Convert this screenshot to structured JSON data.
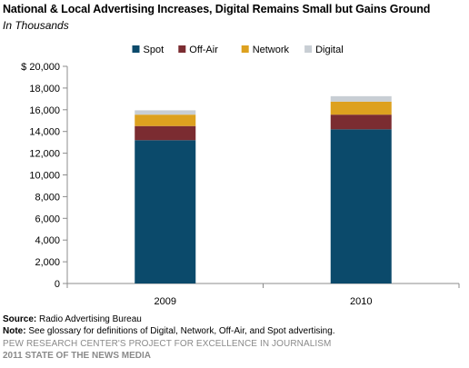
{
  "chart_data": {
    "type": "bar",
    "stacked": true,
    "title": "National & Local Advertising Increases, Digital Remains Small but Gains Ground",
    "subtitle": "In Thousands",
    "categories": [
      "2009",
      "2010"
    ],
    "series": [
      {
        "name": "Spot",
        "color": "#0b4a6b",
        "values": [
          13200,
          14200
        ]
      },
      {
        "name": "Off-Air",
        "color": "#7b2c31",
        "values": [
          1300,
          1350
        ]
      },
      {
        "name": "Network",
        "color": "#dda11f",
        "values": [
          1050,
          1200
        ]
      },
      {
        "name": "Digital",
        "color": "#c8ced4",
        "values": [
          400,
          500
        ]
      }
    ],
    "ylim": [
      0,
      20000
    ],
    "yticks": [
      "$ 20,000",
      "18,000",
      "16,000",
      "14,000",
      "12,000",
      "10,000",
      "8,000",
      "6,000",
      "4,000",
      "2,000",
      "0"
    ],
    "ytick_values": [
      20000,
      18000,
      16000,
      14000,
      12000,
      10000,
      8000,
      6000,
      4000,
      2000,
      0
    ],
    "legend_position": "top",
    "grid": false
  },
  "footer": {
    "source_label": "Source:",
    "source_text": "Radio Advertising Bureau",
    "note_label": "Note:",
    "note_text": "See glossary for definitions of Digital, Network, Off-Air, and Spot advertising.",
    "credit": "PEW RESEARCH CENTER'S PROJECT FOR EXCELLENCE IN JOURNALISM",
    "report": "2011 STATE OF THE NEWS MEDIA"
  }
}
